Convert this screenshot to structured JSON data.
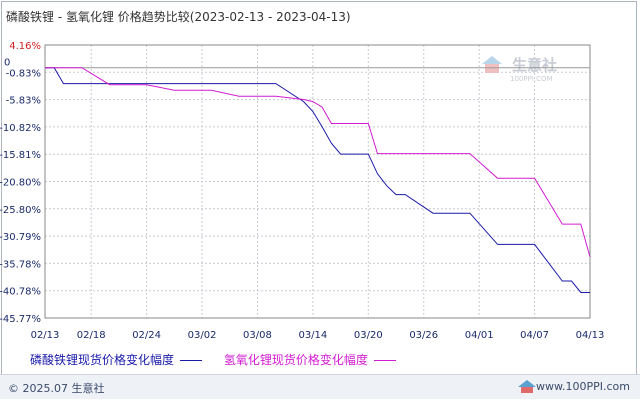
{
  "title": "磷酸铁锂 - 氢氧化锂 价格趋势比较(2023-02-13 - 2023-04-13)",
  "watermark": {
    "brand": "生意社",
    "url": "100PPI.COM"
  },
  "footer": {
    "copyright": "© 2025.07 生意社",
    "site": "www.100PPI.com"
  },
  "colors": {
    "series1": "#1a1aa8",
    "series2": "#d21cd2",
    "grid": "#c9ccd2",
    "axis": "#888888",
    "top_label": "#d22020",
    "tick_text": "#1a2a6a"
  },
  "chart_data": {
    "type": "line",
    "title": "磷酸铁锂 - 氢氧化锂 价格趋势比较(2023-02-13 - 2023-04-13)",
    "xlabel": "",
    "ylabel": "",
    "x_ticks": [
      "02/13",
      "02/18",
      "02/24",
      "03/02",
      "03/08",
      "03/14",
      "03/20",
      "03/26",
      "04/01",
      "04/07",
      "04/13"
    ],
    "y_ticks": [
      "4.16%",
      "0",
      "-0.83%",
      "-5.83%",
      "-10.82%",
      "-15.81%",
      "-20.80%",
      "-25.80%",
      "-30.79%",
      "-35.78%",
      "-40.78%",
      "-45.77%"
    ],
    "ylim": [
      -45.77,
      4.16
    ],
    "grid": true,
    "legend_position": "bottom",
    "series": [
      {
        "name": "磷酸铁锂现货价格变化幅度",
        "points": [
          [
            "02/13",
            0
          ],
          [
            "02/14",
            0
          ],
          [
            "02/15",
            -2.9
          ],
          [
            "02/16",
            -2.9
          ],
          [
            "02/17",
            -2.9
          ],
          [
            "02/20",
            -2.9
          ],
          [
            "02/21",
            -2.9
          ],
          [
            "02/22",
            -2.9
          ],
          [
            "02/23",
            -2.9
          ],
          [
            "02/24",
            -2.9
          ],
          [
            "02/27",
            -2.9
          ],
          [
            "02/28",
            -2.9
          ],
          [
            "03/01",
            -2.9
          ],
          [
            "03/02",
            -2.9
          ],
          [
            "03/03",
            -2.9
          ],
          [
            "03/06",
            -2.9
          ],
          [
            "03/07",
            -2.9
          ],
          [
            "03/08",
            -2.9
          ],
          [
            "03/09",
            -2.9
          ],
          [
            "03/10",
            -2.9
          ],
          [
            "03/13",
            -6.2
          ],
          [
            "03/14",
            -8.0
          ],
          [
            "03/15",
            -10.8
          ],
          [
            "03/16",
            -13.8
          ],
          [
            "03/17",
            -15.8
          ],
          [
            "03/20",
            -15.8
          ],
          [
            "03/21",
            -19.4
          ],
          [
            "03/22",
            -21.6
          ],
          [
            "03/23",
            -23.2
          ],
          [
            "03/24",
            -23.2
          ],
          [
            "03/27",
            -26.6
          ],
          [
            "03/28",
            -26.6
          ],
          [
            "03/29",
            -26.6
          ],
          [
            "03/30",
            -26.6
          ],
          [
            "03/31",
            -26.6
          ],
          [
            "04/03",
            -32.3
          ],
          [
            "04/04",
            -32.3
          ],
          [
            "04/05",
            -32.3
          ],
          [
            "04/06",
            -32.3
          ],
          [
            "04/07",
            -32.3
          ],
          [
            "04/10",
            -39.0
          ],
          [
            "04/11",
            -39.0
          ],
          [
            "04/12",
            -41.1
          ],
          [
            "04/13",
            -41.1
          ]
        ]
      },
      {
        "name": "氢氧化锂现货价格变化幅度",
        "points": [
          [
            "02/13",
            0
          ],
          [
            "02/14",
            0
          ],
          [
            "02/15",
            0
          ],
          [
            "02/16",
            0
          ],
          [
            "02/17",
            0
          ],
          [
            "02/20",
            -3.1
          ],
          [
            "02/21",
            -3.1
          ],
          [
            "02/22",
            -3.1
          ],
          [
            "02/23",
            -3.1
          ],
          [
            "02/24",
            -3.1
          ],
          [
            "02/27",
            -4.1
          ],
          [
            "02/28",
            -4.1
          ],
          [
            "03/01",
            -4.1
          ],
          [
            "03/02",
            -4.1
          ],
          [
            "03/03",
            -4.1
          ],
          [
            "03/06",
            -5.2
          ],
          [
            "03/07",
            -5.2
          ],
          [
            "03/08",
            -5.2
          ],
          [
            "03/09",
            -5.2
          ],
          [
            "03/10",
            -5.2
          ],
          [
            "03/13",
            -5.8
          ],
          [
            "03/14",
            -6.2
          ],
          [
            "03/15",
            -7.2
          ],
          [
            "03/16",
            -10.2
          ],
          [
            "03/17",
            -10.2
          ],
          [
            "03/20",
            -10.2
          ],
          [
            "03/21",
            -15.7
          ],
          [
            "03/22",
            -15.7
          ],
          [
            "03/23",
            -15.7
          ],
          [
            "03/24",
            -15.7
          ],
          [
            "03/27",
            -15.7
          ],
          [
            "03/28",
            -15.7
          ],
          [
            "03/29",
            -15.7
          ],
          [
            "03/30",
            -15.7
          ],
          [
            "03/31",
            -15.7
          ],
          [
            "04/03",
            -20.2
          ],
          [
            "04/04",
            -20.2
          ],
          [
            "04/05",
            -20.2
          ],
          [
            "04/06",
            -20.2
          ],
          [
            "04/07",
            -20.2
          ],
          [
            "04/10",
            -28.6
          ],
          [
            "04/11",
            -28.6
          ],
          [
            "04/12",
            -28.6
          ],
          [
            "04/13",
            -34.6
          ]
        ]
      }
    ]
  }
}
